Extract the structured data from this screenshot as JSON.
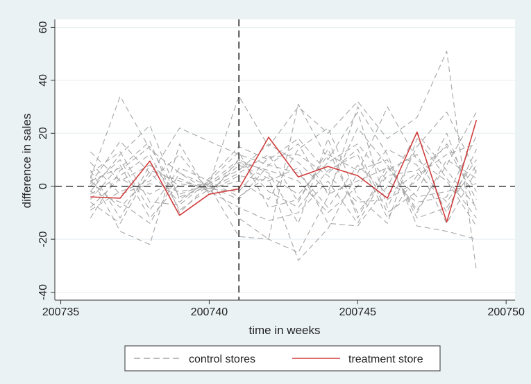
{
  "chart_data": {
    "type": "line",
    "xlabel": "time in weeks",
    "ylabel": "difference in sales",
    "xlim": [
      200734.8,
      200750.3
    ],
    "ylim": [
      -43,
      63
    ],
    "xticks": [
      200735,
      200740,
      200745,
      200750
    ],
    "yticks": [
      -40,
      -20,
      0,
      20,
      40,
      60
    ],
    "reference_lines": {
      "x": 200741,
      "y": 0
    },
    "grid": "horizontal",
    "legend": {
      "position": "bottom",
      "entries": [
        {
          "label": "control stores",
          "style": "dashed",
          "color": "#a6a6a6"
        },
        {
          "label": "treatment store",
          "style": "solid",
          "color": "#d23c3c"
        }
      ]
    },
    "x": [
      200736,
      200737,
      200738,
      200739,
      200740,
      200741,
      200742,
      200743,
      200744,
      200745,
      200746,
      200747,
      200748,
      200749
    ],
    "series": [
      {
        "name": "treatment store",
        "role": "treatment",
        "values": [
          -4,
          -4.5,
          9.5,
          -11,
          -3,
          -1,
          18.5,
          3.5,
          7.5,
          4,
          -4.5,
          20.5,
          -13.5,
          25
        ]
      },
      {
        "role": "control",
        "values": [
          13,
          2,
          8,
          -3,
          1,
          34,
          15,
          30,
          20,
          32,
          18,
          26,
          51,
          -32
        ]
      },
      {
        "role": "control",
        "values": [
          3,
          34,
          14,
          5,
          -2,
          8,
          3,
          -28,
          -16,
          5,
          30,
          10,
          2,
          -15
        ]
      },
      {
        "role": "control",
        "values": [
          -2,
          12,
          23,
          -5,
          2,
          -12,
          -20,
          31,
          10,
          28,
          -8,
          15,
          28,
          5
        ]
      },
      {
        "role": "control",
        "values": [
          4,
          -17,
          -22,
          16,
          -3,
          10,
          5,
          -14,
          18,
          -12,
          8,
          -9,
          8,
          28
        ]
      },
      {
        "role": "control",
        "values": [
          -12,
          6,
          15,
          -4,
          0,
          -19,
          -20,
          -25,
          -4,
          30,
          12,
          -15,
          -17,
          -20
        ]
      },
      {
        "role": "control",
        "values": [
          2,
          -8,
          4,
          22,
          17,
          12,
          8,
          5,
          -8,
          8,
          -3,
          5,
          -6,
          10
        ]
      },
      {
        "role": "control",
        "values": [
          -5,
          8,
          -12,
          1,
          -1,
          5,
          12,
          -6,
          14,
          -10,
          4,
          6,
          15,
          -5
        ]
      },
      {
        "role": "control",
        "values": [
          1,
          17,
          5,
          -6,
          3,
          15,
          10,
          18,
          5,
          14,
          -10,
          -2,
          20,
          -9
        ]
      },
      {
        "role": "control",
        "values": [
          -8,
          3,
          -3,
          3,
          -2,
          -8,
          -13,
          -10,
          2,
          -14,
          6,
          12,
          -10,
          14
        ]
      },
      {
        "role": "control",
        "values": [
          6,
          -12,
          8,
          0,
          1,
          6,
          16,
          9,
          -2,
          22,
          8,
          -10,
          10,
          3
        ]
      },
      {
        "role": "control",
        "values": [
          -3,
          4,
          12,
          -9,
          -1,
          2,
          -5,
          14,
          22,
          -4,
          -14,
          18,
          3,
          -12
        ]
      },
      {
        "role": "control",
        "values": [
          0,
          10,
          -9,
          7,
          2,
          -4,
          4,
          -3,
          9,
          16,
          2,
          -6,
          -4,
          19
        ]
      },
      {
        "role": "control",
        "values": [
          9,
          -3,
          1,
          -2,
          0,
          9,
          6,
          2,
          -10,
          0,
          14,
          8,
          -14,
          6
        ]
      },
      {
        "role": "control",
        "values": [
          -6,
          -14,
          6,
          2,
          -1,
          -2,
          11,
          12,
          4,
          -6,
          -5,
          2,
          16,
          -2
        ]
      },
      {
        "role": "control",
        "values": [
          5,
          13,
          -6,
          -7,
          2,
          13,
          -8,
          -5,
          12,
          6,
          10,
          -12,
          -8,
          8
        ]
      },
      {
        "role": "control",
        "values": [
          -9,
          -2,
          2,
          12,
          -2,
          4,
          2,
          7,
          -14,
          -15,
          0,
          20,
          6,
          -8
        ]
      },
      {
        "role": "control",
        "values": [
          2,
          7,
          17,
          -10,
          1,
          10,
          -2,
          -8,
          6,
          12,
          -12,
          4,
          12,
          16
        ]
      },
      {
        "role": "control",
        "values": [
          -2,
          -6,
          -14,
          5,
          0,
          -5,
          8,
          16,
          -3,
          2,
          7,
          -4,
          -2,
          1
        ]
      }
    ]
  }
}
